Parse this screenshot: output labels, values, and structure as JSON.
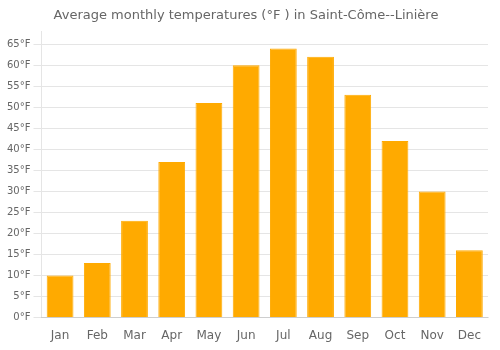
{
  "chart_data": {
    "type": "bar",
    "title": "Average monthly temperatures (°F ) in Saint-Côme--Linière",
    "categories": [
      "Jan",
      "Feb",
      "Mar",
      "Apr",
      "May",
      "Jun",
      "Jul",
      "Aug",
      "Sep",
      "Oct",
      "Nov",
      "Dec"
    ],
    "values": [
      10,
      13,
      23,
      37,
      51,
      60,
      64,
      62,
      53,
      42,
      30,
      16
    ],
    "color": "#FFAA00",
    "ylim": [
      0,
      68
    ],
    "yticks": [
      {
        "value": 0,
        "label": "0°F"
      },
      {
        "value": 5,
        "label": "5°F"
      },
      {
        "value": 10,
        "label": "10°F"
      },
      {
        "value": 15,
        "label": "15°F"
      },
      {
        "value": 20,
        "label": "20°F"
      },
      {
        "value": 25,
        "label": "25°F"
      },
      {
        "value": 30,
        "label": "30°F"
      },
      {
        "value": 35,
        "label": "35°F"
      },
      {
        "value": 40,
        "label": "40°F"
      },
      {
        "value": 45,
        "label": "45°F"
      },
      {
        "value": 50,
        "label": "50°F"
      },
      {
        "value": 55,
        "label": "55°F"
      },
      {
        "value": 60,
        "label": "60°F"
      },
      {
        "value": 65,
        "label": "65°F"
      }
    ],
    "grid": true
  }
}
